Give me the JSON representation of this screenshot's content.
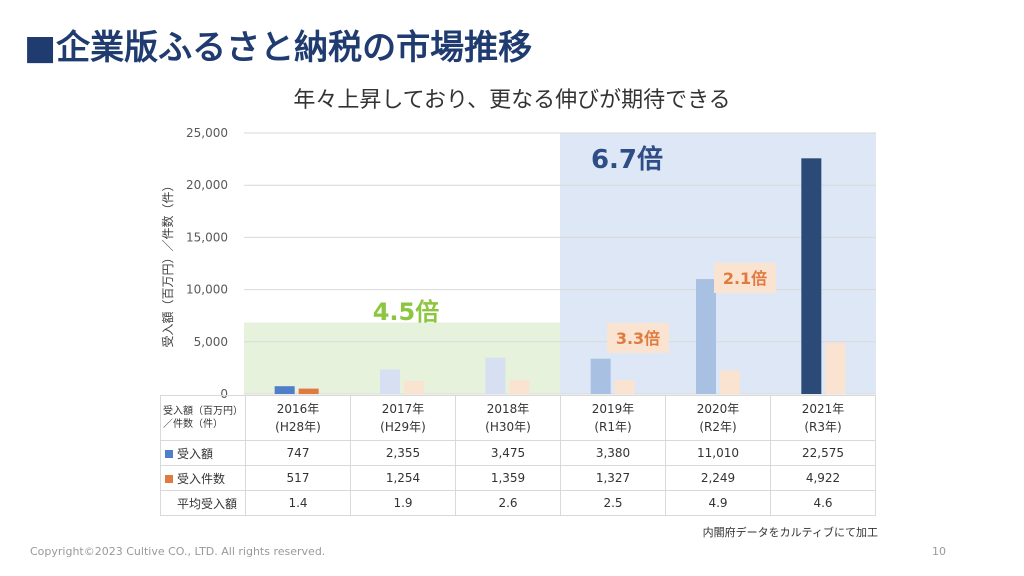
{
  "title": "■企業版ふるさと納税の市場推移",
  "subtitle": "年々上昇しており、更なる伸びが期待できる",
  "colors": {
    "accent": "#1f3b70"
  },
  "chart_data": {
    "type": "bar",
    "ylabel": "受入額（百万円）／件数（件）",
    "ylim": [
      0,
      25000
    ],
    "yticks": [
      "25,000",
      "20,000",
      "15,000",
      "10,000",
      "5,000",
      "0"
    ],
    "categories": [
      "2016年(H28年)",
      "2017年(H29年)",
      "2018年(H30年)",
      "2019年(R1年)",
      "2020年(R2年)",
      "2021年(R3年)"
    ],
    "series": [
      {
        "name": "受入額",
        "values": [
          747,
          2355,
          3475,
          3380,
          11010,
          22575
        ]
      },
      {
        "name": "受入件数",
        "values": [
          517,
          1254,
          1359,
          1327,
          2249,
          4922
        ]
      }
    ],
    "annotations": [
      "4.5倍",
      "6.7倍",
      "3.3倍",
      "2.1倍"
    ]
  },
  "table": {
    "header_label": "受入額（百万円）／件数（件）",
    "years": [
      {
        "year": "2016年",
        "era": "(H28年)"
      },
      {
        "year": "2017年",
        "era": "(H29年)"
      },
      {
        "year": "2018年",
        "era": "(H30年)"
      },
      {
        "year": "2019年",
        "era": "(R1年)"
      },
      {
        "year": "2020年",
        "era": "(R2年)"
      },
      {
        "year": "2021年",
        "era": "(R3年)"
      }
    ],
    "rows": [
      {
        "label": "受入額",
        "values": [
          "747",
          "2,355",
          "3,475",
          "3,380",
          "11,010",
          "22,575"
        ]
      },
      {
        "label": "受入件数",
        "values": [
          "517",
          "1,254",
          "1,359",
          "1,327",
          "2,249",
          "4,922"
        ]
      },
      {
        "label": "平均受入額",
        "values": [
          "1.4",
          "1.9",
          "2.6",
          "2.5",
          "4.9",
          "4.6"
        ]
      }
    ]
  },
  "source_note": "内閣府データをカルティブにて加工",
  "footer": {
    "copyright": "Copyright©2023 Cultive CO., LTD. All rights reserved.",
    "page": "10"
  }
}
